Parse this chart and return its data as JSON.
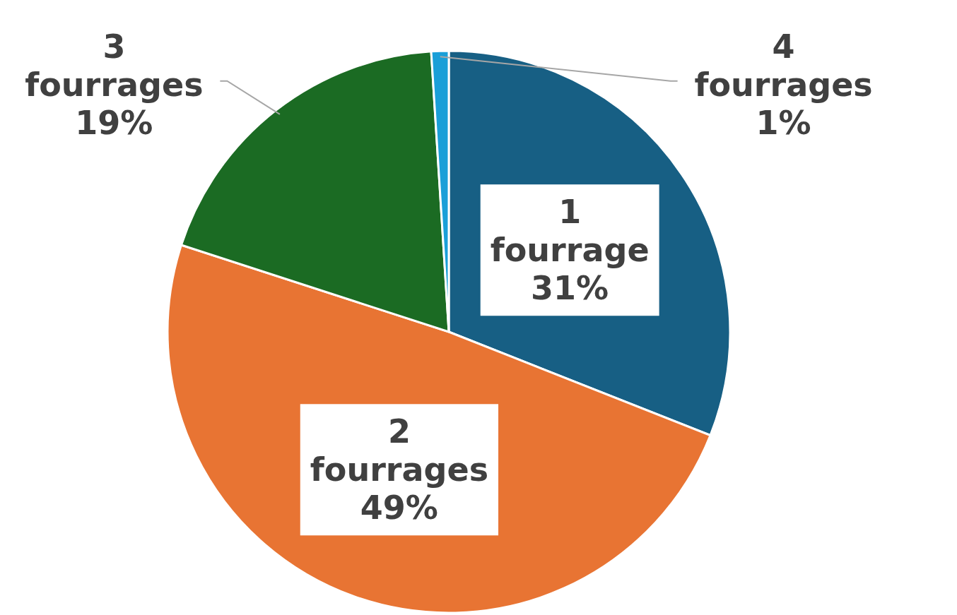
{
  "chart_data": {
    "type": "pie",
    "categories": [
      "1 fourrage",
      "2 fourrages",
      "3 fourrages",
      "4 fourrages"
    ],
    "values": [
      31,
      49,
      19,
      1
    ],
    "colors": [
      "#175f84",
      "#e87433",
      "#1b6b23",
      "#1a9fd8"
    ],
    "value_labels": [
      "31%",
      "49%",
      "19%",
      "1%"
    ]
  }
}
